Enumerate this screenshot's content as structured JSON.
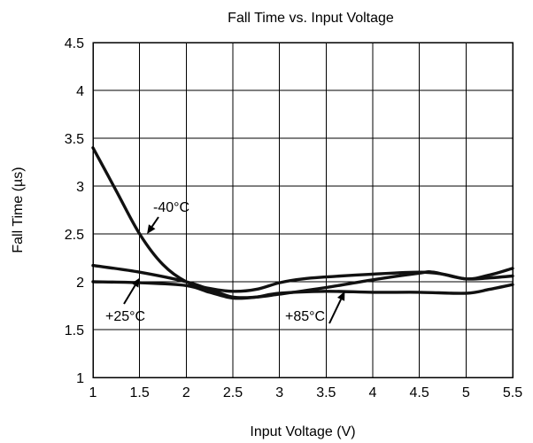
{
  "chart_data": {
    "type": "line",
    "title": "Fall Time vs. Input Voltage",
    "xlabel": "Input Voltage (V)",
    "ylabel": "Fall Time (µs)",
    "xlim": [
      1,
      5.5
    ],
    "ylim": [
      1,
      4.5
    ],
    "x_ticks": [
      1,
      1.5,
      2,
      2.5,
      3,
      3.5,
      4,
      4.5,
      5,
      5.5
    ],
    "x_tick_labels": [
      "1",
      "1.5",
      "2",
      "2.5",
      "3",
      "3.5",
      "4",
      "4.5",
      "5",
      "5.5"
    ],
    "y_ticks": [
      1,
      1.5,
      2,
      2.5,
      3,
      3.5,
      4,
      4.5
    ],
    "y_tick_labels": [
      "1",
      "1.5",
      "2",
      "2.5",
      "3",
      "3.5",
      "4",
      "4.5"
    ],
    "grid": true,
    "legend": "none",
    "series": [
      {
        "name": "-40°C",
        "x": [
          1,
          1.25,
          1.5,
          1.75,
          2,
          2.25,
          2.5,
          2.75,
          3,
          3.25,
          3.5,
          4,
          4.5,
          4.75,
          5,
          5.25,
          5.5
        ],
        "y": [
          3.4,
          2.95,
          2.5,
          2.18,
          2.0,
          1.93,
          1.9,
          1.92,
          1.99,
          2.03,
          2.05,
          2.08,
          2.1,
          2.08,
          2.03,
          2.04,
          2.06
        ]
      },
      {
        "name": "+25°C",
        "x": [
          1,
          1.5,
          2,
          2.25,
          2.5,
          2.75,
          3,
          3.5,
          4,
          4.5,
          4.65,
          5,
          5.25,
          5.5
        ],
        "y": [
          2.17,
          2.1,
          2.0,
          1.92,
          1.84,
          1.84,
          1.87,
          1.94,
          2.02,
          2.09,
          2.1,
          2.03,
          2.07,
          2.14
        ]
      },
      {
        "name": "+85°C",
        "x": [
          1,
          1.5,
          2,
          2.25,
          2.5,
          2.75,
          3,
          3.5,
          4,
          4.5,
          5,
          5.25,
          5.5
        ],
        "y": [
          2.0,
          1.99,
          1.96,
          1.89,
          1.83,
          1.84,
          1.88,
          1.9,
          1.89,
          1.89,
          1.88,
          1.92,
          1.97
        ]
      }
    ],
    "annotations": [
      {
        "text": "-40°C",
        "series": "-40°C",
        "x": 1.58,
        "y": 2.5
      },
      {
        "text": "+25°C",
        "series": "+25°C",
        "x": 1.5,
        "y": 2.04
      },
      {
        "text": "+85°C",
        "series": "+85°C",
        "x": 3.7,
        "y": 1.9
      }
    ]
  }
}
